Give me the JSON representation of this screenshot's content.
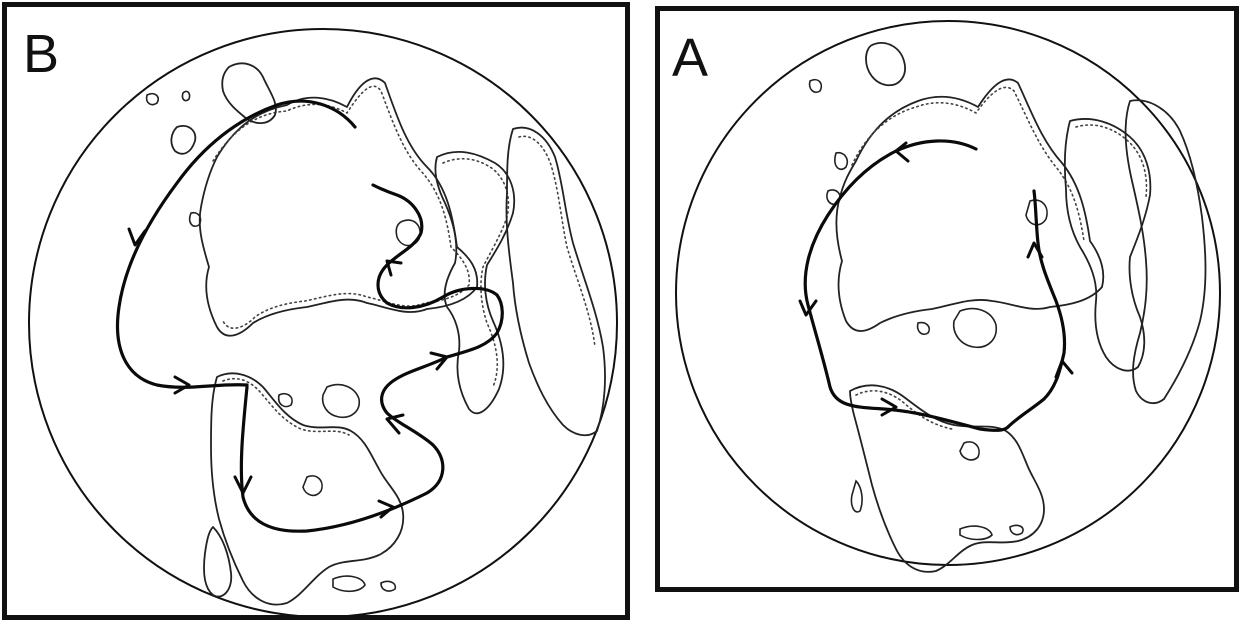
{
  "panels": [
    {
      "id": "B",
      "label": "B"
    },
    {
      "id": "A",
      "label": "A"
    }
  ],
  "colors": {
    "frame": "#111111",
    "ink": "#0a0a0a",
    "background": "#ffffff"
  }
}
